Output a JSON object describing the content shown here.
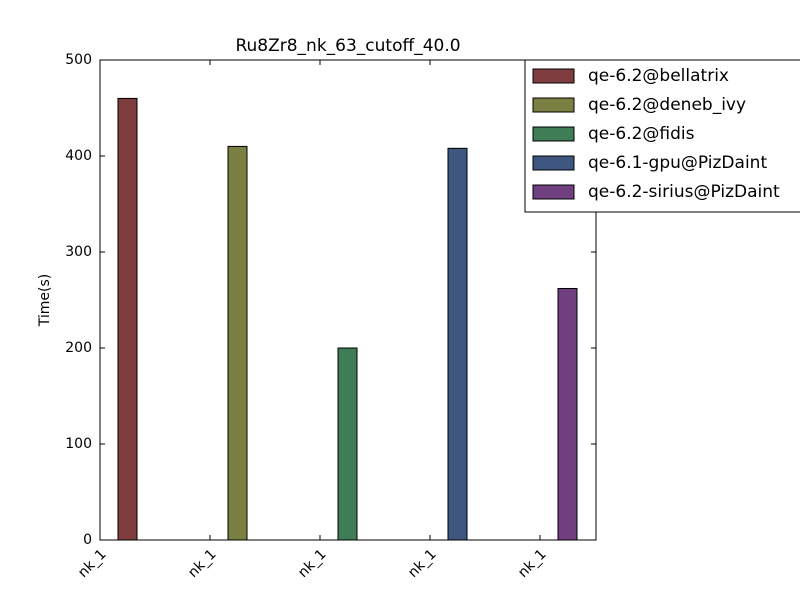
{
  "chart_data": {
    "type": "bar",
    "title": "Ru8Zr8_nk_63_cutoff_40.0",
    "y_label": "Time(s)",
    "categories": [
      "nk_1",
      "nk_1",
      "nk_1",
      "nk_1",
      "nk_1"
    ],
    "series": [
      {
        "name": "qe-6.2@bellatrix",
        "color": "#803d3f",
        "values": [
          460,
          null,
          null,
          null,
          null
        ]
      },
      {
        "name": "qe-6.2@deneb_ivy",
        "color": "#7a8042",
        "values": [
          null,
          410,
          null,
          null,
          null
        ]
      },
      {
        "name": "qe-6.2@fidis",
        "color": "#3e7d55",
        "values": [
          null,
          null,
          200,
          null,
          null
        ]
      },
      {
        "name": "qe-6.1-gpu@PizDaint",
        "color": "#3e5680",
        "values": [
          null,
          null,
          null,
          408,
          null
        ]
      },
      {
        "name": "qe-6.2-sirius@PizDaint",
        "color": "#703f80",
        "values": [
          null,
          null,
          null,
          null,
          262
        ]
      }
    ],
    "ylim": [
      0,
      500
    ],
    "yticks": [
      0,
      100,
      200,
      300,
      400,
      500
    ],
    "legend": "upper right"
  }
}
